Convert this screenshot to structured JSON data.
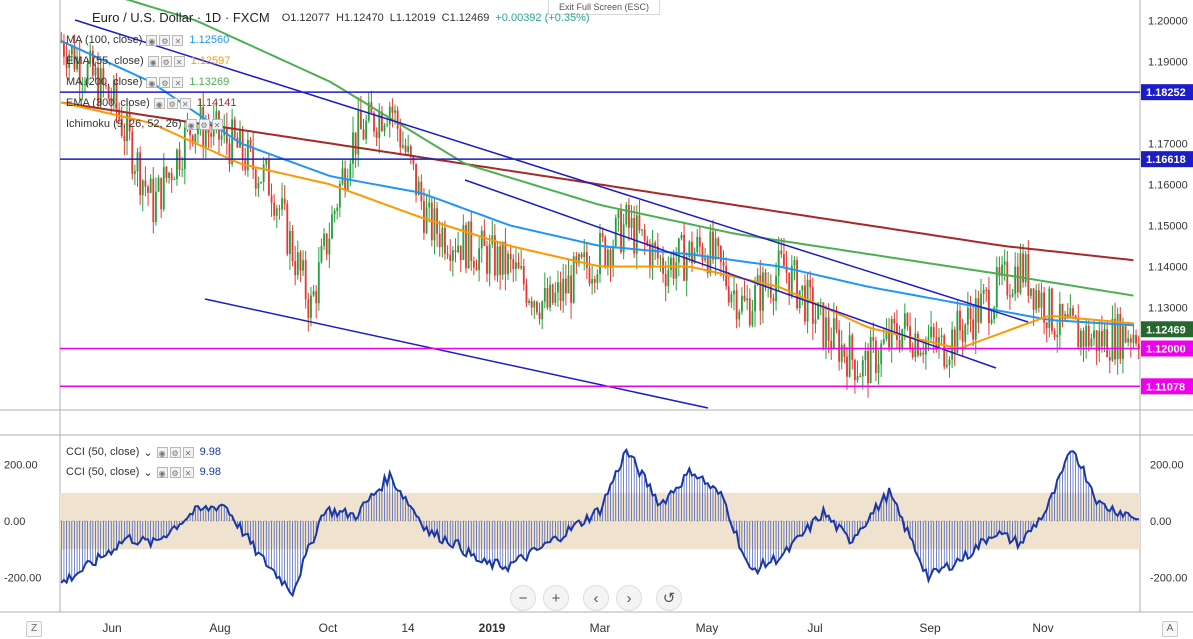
{
  "header": {
    "symbol": "Euro / U.S. Dollar · 1D · FXCM",
    "open": "O1.12077",
    "high": "H1.12470",
    "low": "L1.12019",
    "close": "C1.12469",
    "change": "+0.00392 (+0.35%)"
  },
  "exit_fullscreen": "Exit Full Screen (ESC)",
  "indicators": [
    {
      "name": "MA (100, close)",
      "value": "1.12560",
      "color": "#2196f3"
    },
    {
      "name": "EMA (55, close)",
      "value": "1.12597",
      "color": "#ff9800"
    },
    {
      "name": "MA (200, close)",
      "value": "1.13269",
      "color": "#4caf50"
    },
    {
      "name": "EMA (300, close)",
      "value": "1.14141",
      "color": "#a52a2a"
    },
    {
      "name": "Ichimoku (9, 26, 52, 26)",
      "value": "",
      "color": "#2196f3"
    }
  ],
  "cci_legend": [
    {
      "name": "CCI (50, close)",
      "value": "9.98"
    },
    {
      "name": "CCI (50, close)",
      "value": "9.98"
    }
  ],
  "price_axis": {
    "ticks": [
      "1.20000",
      "1.19000",
      "1.17000",
      "1.16000",
      "1.15000",
      "1.14000",
      "1.13000",
      "1.11078"
    ],
    "badges": [
      {
        "label": "1.18252",
        "color": "#1c1cc8"
      },
      {
        "label": "1.16618",
        "color": "#1c1cc8"
      },
      {
        "label": "1.12469",
        "color": "#26662f"
      },
      {
        "label": "1.12000",
        "color": "#ee00ee"
      },
      {
        "label": "1.11078",
        "color": "#ee00ee"
      }
    ]
  },
  "cci_axis": {
    "ticks": [
      "200.00",
      "0.00",
      "-200.00"
    ]
  },
  "time_axis": [
    "Jun",
    "Aug",
    "Oct",
    "14",
    "2019",
    "Mar",
    "May",
    "Jul",
    "Sep",
    "Nov"
  ],
  "nav_buttons": [
    "−",
    "+",
    "‹",
    "›",
    "↺"
  ],
  "corners": {
    "left": "Z",
    "right": "A"
  },
  "colors": {
    "up": "#26a03c",
    "down": "#e53935",
    "channel": "#1c1cc8",
    "support": "#ee00ee",
    "cci_line": "#1a37a6",
    "cci_band": "#efe3d0"
  },
  "chart_data": {
    "type": "candlestick",
    "symbol": "EURUSD",
    "timeframe": "1D",
    "y_range": [
      1.105,
      1.205
    ],
    "horizontal_levels": [
      {
        "value": 1.18252,
        "color": "blue"
      },
      {
        "value": 1.16618,
        "color": "blue"
      },
      {
        "value": 1.12,
        "color": "magenta"
      },
      {
        "value": 1.11078,
        "color": "magenta"
      }
    ],
    "close_path_days": [
      0,
      20,
      35,
      50,
      65,
      80,
      95,
      110,
      125,
      140,
      155,
      170,
      185,
      200,
      215,
      230,
      245,
      260,
      275,
      290,
      305,
      320,
      335,
      350,
      365,
      380,
      395,
      410
    ],
    "close_path_values": [
      1.195,
      1.18,
      1.155,
      1.175,
      1.17,
      1.16,
      1.13,
      1.17,
      1.18,
      1.15,
      1.145,
      1.14,
      1.13,
      1.14,
      1.15,
      1.14,
      1.145,
      1.13,
      1.14,
      1.125,
      1.115,
      1.125,
      1.12,
      1.13,
      1.14,
      1.125,
      1.122,
      1.1247
    ],
    "ma100": [
      1.195,
      1.185,
      1.17,
      1.162,
      1.158,
      1.15,
      1.145,
      1.143,
      1.14,
      1.135,
      1.131,
      1.127,
      1.1256
    ],
    "ema55": [
      1.18,
      1.175,
      1.165,
      1.16,
      1.152,
      1.145,
      1.14,
      1.14,
      1.135,
      1.125,
      1.12,
      1.128,
      1.126
    ],
    "ma200": [
      1.21,
      1.2,
      1.185,
      1.165,
      1.155,
      1.148,
      1.143,
      1.138,
      1.1327
    ],
    "ema300": [
      1.18,
      1.175,
      1.17,
      1.165,
      1.16,
      1.155,
      1.15,
      1.145,
      1.1414
    ],
    "cci_value": 9.98,
    "cci_range": [
      -300,
      300
    ],
    "cci_band": [
      -100,
      100
    ]
  }
}
